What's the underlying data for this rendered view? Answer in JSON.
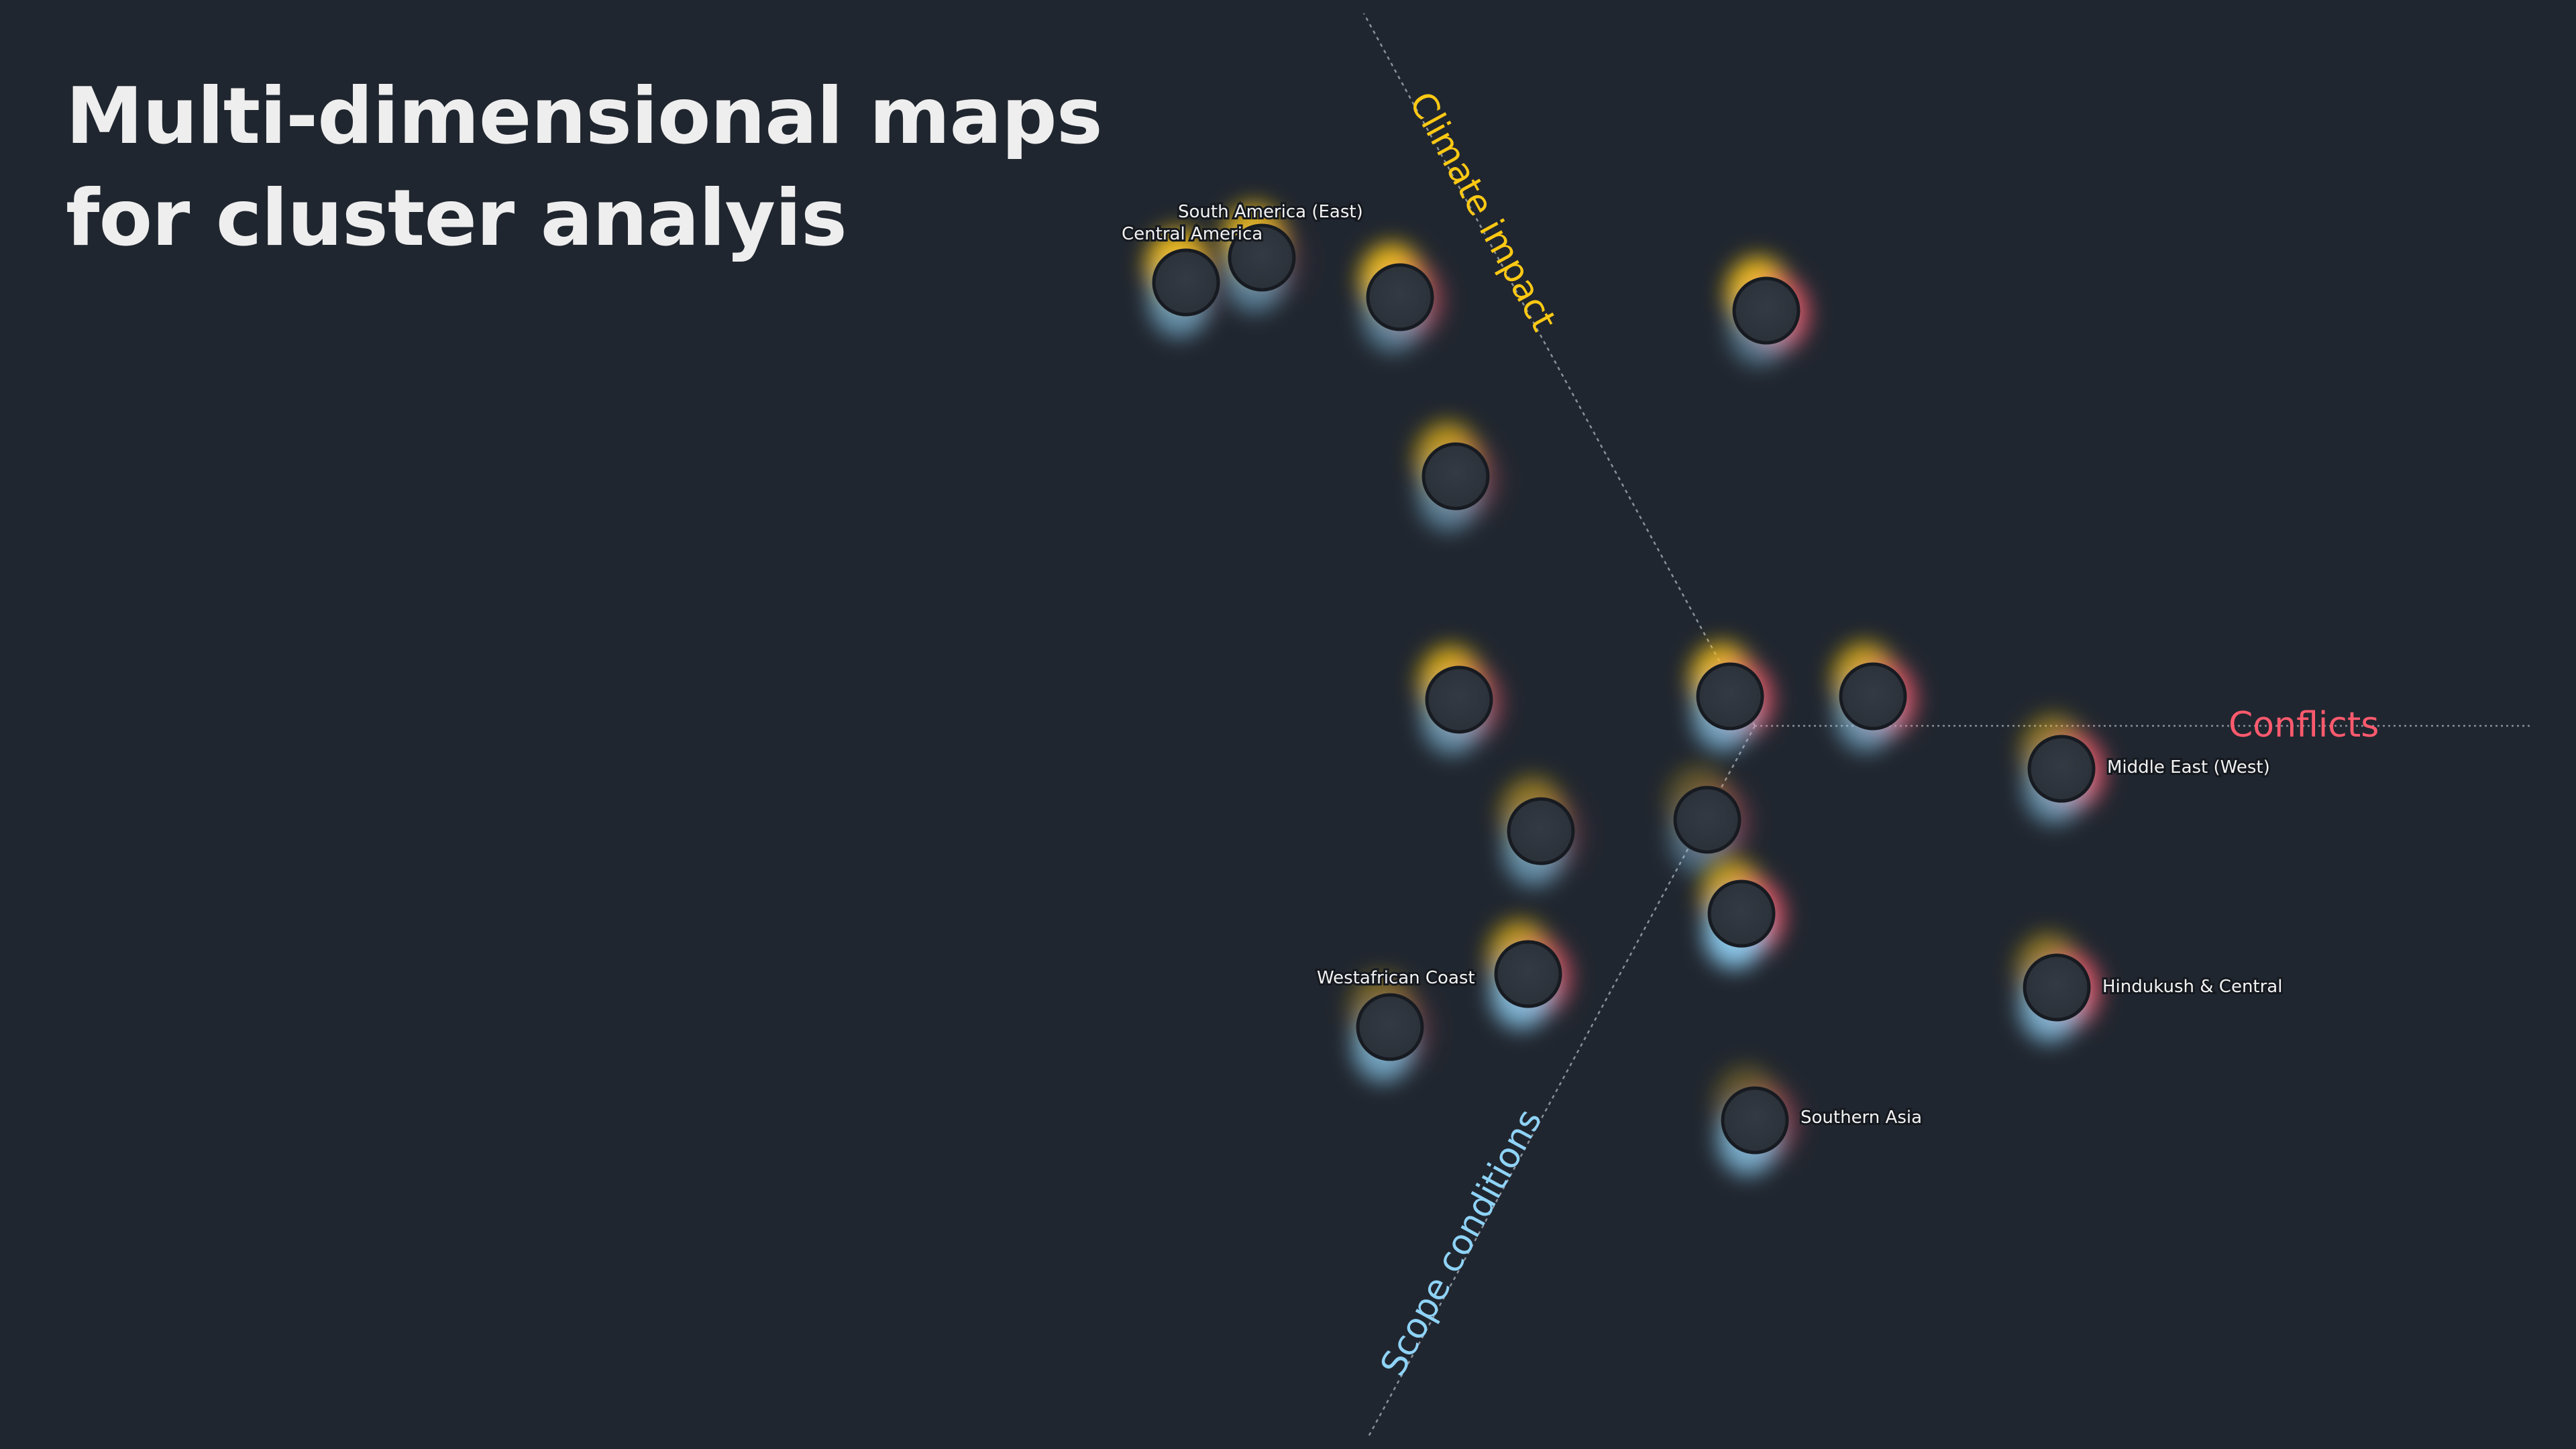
{
  "title": {
    "line1": "Multi-dimensional maps",
    "line2": "for cluster analyis"
  },
  "colors": {
    "background": "#20262f",
    "climate": "#ffc914",
    "conflicts": "#ff5a6e",
    "scope": "#8fd3f7",
    "node": "#2c323a"
  },
  "chart_data": {
    "type": "scatter",
    "axes": [
      {
        "name": "Climate impact",
        "color": "#ffc914",
        "direction": "upper-left"
      },
      {
        "name": "Conflicts",
        "color": "#ff5a6e",
        "direction": "right"
      },
      {
        "name": "Scope conditions",
        "color": "#8fd3f7",
        "direction": "lower-left"
      }
    ],
    "points": [
      {
        "label": "Central America",
        "climate": 0.9,
        "conflicts": 0.1,
        "scope": 0.6
      },
      {
        "label": "South America (East)",
        "climate": 0.85,
        "conflicts": 0.15,
        "scope": 0.5
      },
      {
        "label": "",
        "climate": 0.9,
        "conflicts": 0.5,
        "scope": 0.5
      },
      {
        "label": "",
        "climate": 0.9,
        "conflicts": 0.8,
        "scope": 0.45
      },
      {
        "label": "",
        "climate": 0.7,
        "conflicts": 0.3,
        "scope": 0.5
      },
      {
        "label": "",
        "climate": 0.8,
        "conflicts": 0.5,
        "scope": 0.6
      },
      {
        "label": "",
        "climate": 0.85,
        "conflicts": 0.8,
        "scope": 0.7
      },
      {
        "label": "",
        "climate": 0.75,
        "conflicts": 0.8,
        "scope": 0.6
      },
      {
        "label": "Middle East (West)",
        "climate": 0.5,
        "conflicts": 0.85,
        "scope": 0.6
      },
      {
        "label": "",
        "climate": 0.5,
        "conflicts": 0.2,
        "scope": 0.6
      },
      {
        "label": "",
        "climate": 0.3,
        "conflicts": 0.3,
        "scope": 0.4
      },
      {
        "label": "",
        "climate": 0.75,
        "conflicts": 0.85,
        "scope": 0.9
      },
      {
        "label": "",
        "climate": 0.7,
        "conflicts": 0.7,
        "scope": 0.8
      },
      {
        "label": "Westafrican Coast",
        "climate": 0.4,
        "conflicts": 0.2,
        "scope": 0.7
      },
      {
        "label": "Hindukush & Central",
        "climate": 0.5,
        "conflicts": 0.85,
        "scope": 0.75
      },
      {
        "label": "Southern Asia",
        "climate": 0.3,
        "conflicts": 0.4,
        "scope": 0.75
      }
    ]
  }
}
